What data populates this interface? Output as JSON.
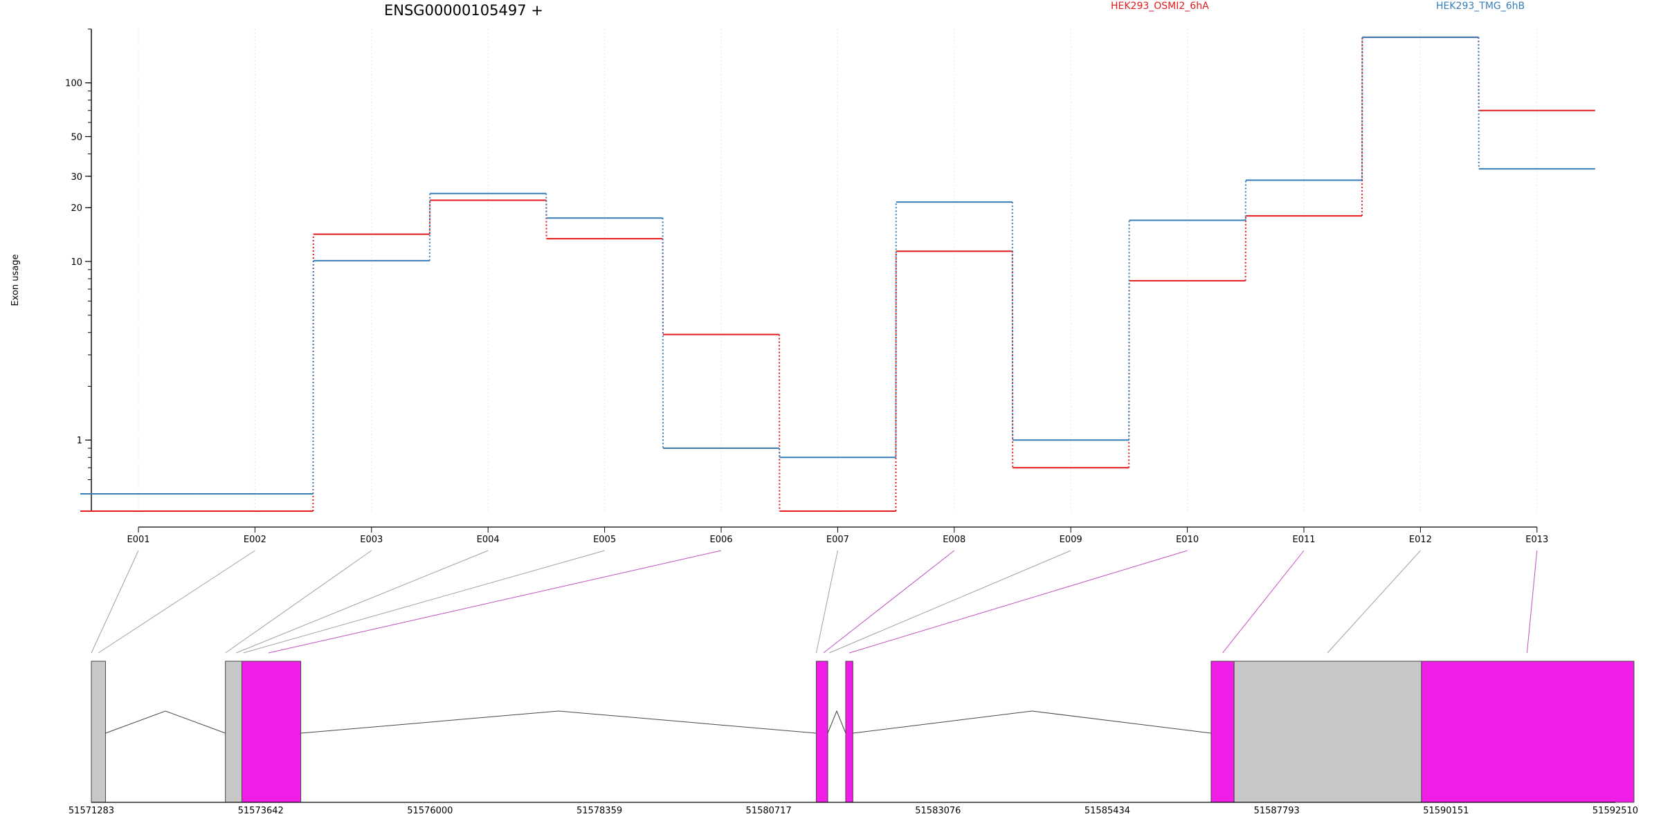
{
  "chart_data": {
    "type": "line",
    "title": "ENSG00000105497 +",
    "ylabel": "Exon usage",
    "xlabel": "",
    "yscale": "log",
    "ylim": [
      0.4,
      200
    ],
    "y_ticks": [
      1,
      10,
      20,
      30,
      50,
      100
    ],
    "grid": "vertical dotted lines at each exon bin",
    "legend_position": "top",
    "categories": [
      "E001",
      "E002",
      "E003",
      "E004",
      "E005",
      "E006",
      "E007",
      "E008",
      "E009",
      "E010",
      "E011",
      "E012",
      "E013"
    ],
    "series": [
      {
        "name": "HEK293_OSMI2_6hA",
        "color": "#E41A1C",
        "values": [
          0.4,
          0.4,
          14.2,
          22.0,
          13.4,
          3.9,
          0.4,
          11.4,
          0.7,
          7.8,
          18.0,
          180,
          70
        ]
      },
      {
        "name": "HEK293_TMG_6hB",
        "color": "#377EB8",
        "values": [
          0.5,
          0.5,
          10.1,
          24.0,
          17.5,
          0.9,
          0.8,
          21.5,
          1.0,
          17.0,
          28.5,
          180,
          33
        ]
      }
    ],
    "gene_model": {
      "coordinate_ticks": [
        "51571283",
        "51573642",
        "51576000",
        "51578359",
        "51580717",
        "51583076",
        "51585434",
        "51587793",
        "51590151",
        "51592510"
      ],
      "coordinate_range": [
        51571283,
        51592510
      ],
      "exons": [
        {
          "start": 51571283,
          "end": 51571480,
          "color": "#C8C8C8"
        },
        {
          "start": 51573150,
          "end": 51573380,
          "color": "#C8C8C8"
        },
        {
          "start": 51573380,
          "end": 51574200,
          "color": "#F01EE6"
        },
        {
          "start": 51581380,
          "end": 51581540,
          "color": "#F01EE6"
        },
        {
          "start": 51581790,
          "end": 51581890,
          "color": "#F01EE6"
        },
        {
          "start": 51586880,
          "end": 51587200,
          "color": "#F01EE6"
        },
        {
          "start": 51587200,
          "end": 51589810,
          "color": "#C8C8C8"
        },
        {
          "start": 51589810,
          "end": 51592770,
          "color": "#F01EE6"
        }
      ],
      "exon_bin_links": [
        {
          "bin": "E001",
          "target": 51571283,
          "color": "#A0A0A0"
        },
        {
          "bin": "E002",
          "target": 51571380,
          "color": "#A0A0A0"
        },
        {
          "bin": "E003",
          "target": 51573150,
          "color": "#A0A0A0"
        },
        {
          "bin": "E004",
          "target": 51573300,
          "color": "#A0A0A0"
        },
        {
          "bin": "E005",
          "target": 51573400,
          "color": "#A0A0A0"
        },
        {
          "bin": "E006",
          "target": 51573750,
          "color": "#C050C0"
        },
        {
          "bin": "E007",
          "target": 51581380,
          "color": "#A0A0A0"
        },
        {
          "bin": "E008",
          "target": 51581480,
          "color": "#C050C0"
        },
        {
          "bin": "E009",
          "target": 51581560,
          "color": "#A0A0A0"
        },
        {
          "bin": "E010",
          "target": 51581840,
          "color": "#C050C0"
        },
        {
          "bin": "E011",
          "target": 51587040,
          "color": "#C050C0"
        },
        {
          "bin": "E012",
          "target": 51588500,
          "color": "#A0A0A0"
        },
        {
          "bin": "E013",
          "target": 51591280,
          "color": "#C050C0"
        }
      ]
    }
  }
}
